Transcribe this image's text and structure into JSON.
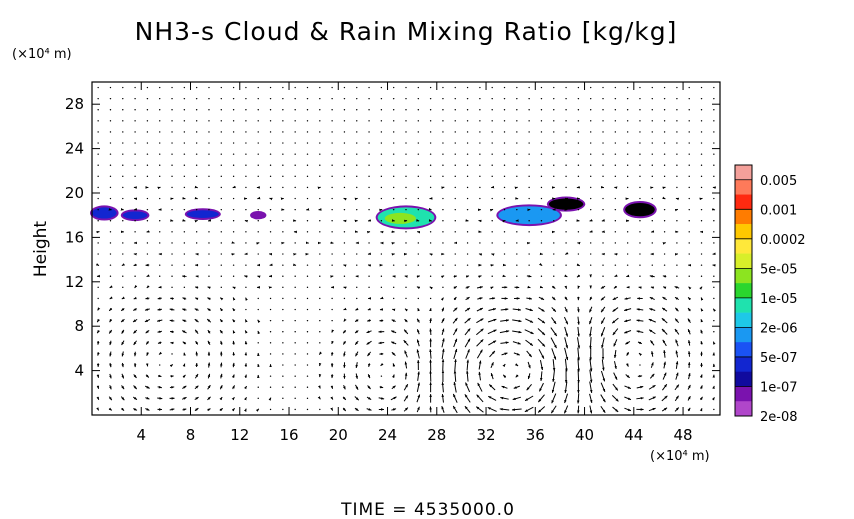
{
  "chart_data": {
    "type": "heatmap",
    "title": "NH3-s Cloud & Rain Mixing Ratio [kg/kg]",
    "ylabel": "Height",
    "x_unit_label": "(×10⁴ m)",
    "y_unit_label": "(×10⁴ m)",
    "xlim": [
      0,
      51
    ],
    "ylim": [
      0,
      30
    ],
    "x_ticks": [
      4,
      8,
      12,
      16,
      20,
      24,
      28,
      32,
      36,
      40,
      44,
      48
    ],
    "y_ticks": [
      4,
      8,
      12,
      16,
      20,
      24,
      28
    ],
    "grid": false,
    "legend_position": "right",
    "colorbar": {
      "labels": [
        "0.005",
        "0.001",
        "0.0002",
        "5e-05",
        "1e-05",
        "2e-06",
        "5e-07",
        "1e-07",
        "2e-08"
      ],
      "colors": [
        "#f4a09a",
        "#fe7a5a",
        "#ff2a10",
        "#ff7c00",
        "#ffc800",
        "#ffe83a",
        "#d8ef2a",
        "#8ce420",
        "#2ad62e",
        "#1fe2ae",
        "#1ec8e8",
        "#1a98f2",
        "#1a52f4",
        "#1226d0",
        "#100a9e",
        "#7a12ae",
        "#b046ca"
      ]
    },
    "cloud_patches": [
      {
        "x": 1.0,
        "y": 18.2,
        "rx": 1.0,
        "ry": 0.5,
        "level": 5e-07
      },
      {
        "x": 3.5,
        "y": 18.0,
        "rx": 1.0,
        "ry": 0.35,
        "level": 5e-07
      },
      {
        "x": 9.0,
        "y": 18.1,
        "rx": 1.3,
        "ry": 0.35,
        "level": 5e-07
      },
      {
        "x": 13.5,
        "y": 18.0,
        "rx": 0.5,
        "ry": 0.2,
        "level": 1e-07
      },
      {
        "x": 25.5,
        "y": 17.8,
        "rx": 2.3,
        "ry": 0.9,
        "level": 1e-05
      },
      {
        "x": 35.5,
        "y": 18.0,
        "rx": 2.5,
        "ry": 0.8,
        "level": 2e-06
      },
      {
        "x": 38.5,
        "y": 19.0,
        "rx": 1.4,
        "ry": 0.5,
        "level": 2e-08
      },
      {
        "x": 44.5,
        "y": 18.5,
        "rx": 1.2,
        "ry": 0.6,
        "level": 2e-08
      }
    ],
    "circulation_cells": [
      {
        "x": 34,
        "y": 4,
        "rx": 5,
        "ry": 5,
        "rotation": "clockwise",
        "strength": 1.0
      },
      {
        "x": 44,
        "y": 5,
        "rx": 4,
        "ry": 5,
        "rotation": "counterclockwise",
        "strength": 0.8
      },
      {
        "x": 24,
        "y": 4,
        "rx": 3.5,
        "ry": 4,
        "rotation": "counterclockwise",
        "strength": 0.6
      },
      {
        "x": 6,
        "y": 5,
        "rx": 5,
        "ry": 5,
        "rotation": "counterclockwise",
        "strength": 0.5
      }
    ]
  },
  "footer": {
    "time_label": "TIME  =  4535000.0"
  }
}
